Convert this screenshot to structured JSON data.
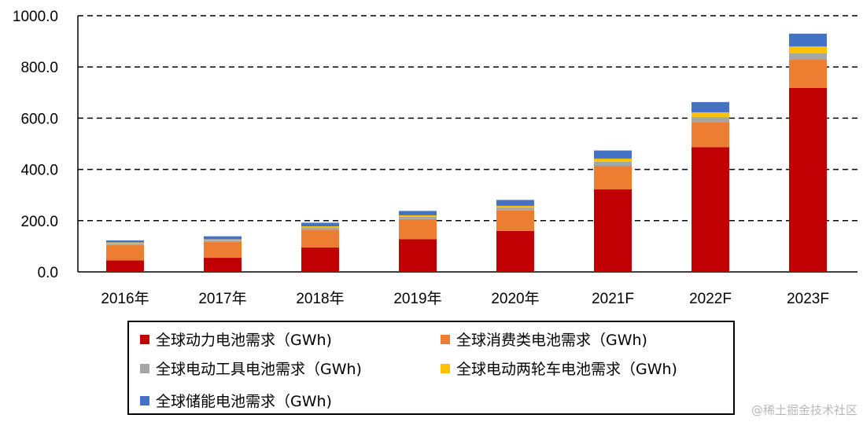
{
  "chart_data": {
    "type": "bar",
    "stacked": true,
    "categories": [
      "2016年",
      "2017年",
      "2018年",
      "2019年",
      "2020年",
      "2021F",
      "2022F",
      "2023F"
    ],
    "ylim": [
      0,
      1000
    ],
    "yticks": [
      "0.0",
      "200.0",
      "400.0",
      "600.0",
      "800.0",
      "1000.0"
    ],
    "ytick_values": [
      0,
      200,
      400,
      600,
      800,
      1000
    ],
    "grid": true,
    "legend_position": "bottom",
    "series": [
      {
        "name": "全球动力电池需求（GWh)",
        "color": "#C00000",
        "values": [
          45,
          55,
          95,
          128,
          160,
          322,
          487,
          718
        ]
      },
      {
        "name": "全球消费类电池需求（GWh)",
        "color": "#ED7D31",
        "values": [
          60,
          62,
          70,
          78,
          80,
          92,
          98,
          110
        ]
      },
      {
        "name": "全球电动工具电池需求（GWh)",
        "color": "#A5A5A5",
        "values": [
          6,
          6,
          8,
          9,
          11,
          16,
          20,
          25
        ]
      },
      {
        "name": "全球电动两轮车电池需求（GWh)",
        "color": "#FFC000",
        "values": [
          4,
          4,
          5,
          6,
          7,
          12,
          18,
          27
        ]
      },
      {
        "name": "全球储能电池需求（GWh)",
        "color": "#4472C4",
        "values": [
          8,
          12,
          14,
          17,
          23,
          32,
          40,
          50
        ]
      }
    ],
    "legend": [
      {
        "label": "全球动力电池需求（GWh)",
        "color": "#C00000"
      },
      {
        "label": "全球消费类电池需求（GWh)",
        "color": "#ED7D31"
      },
      {
        "label": "全球电动工具电池需求（GWh)",
        "color": "#A5A5A5"
      },
      {
        "label": "全球电动两轮车电池需求（GWh)",
        "color": "#FFC000"
      },
      {
        "label": "全球储能电池需求（GWh)",
        "color": "#4472C4"
      }
    ]
  },
  "watermark": "@稀土掘金技术社区"
}
